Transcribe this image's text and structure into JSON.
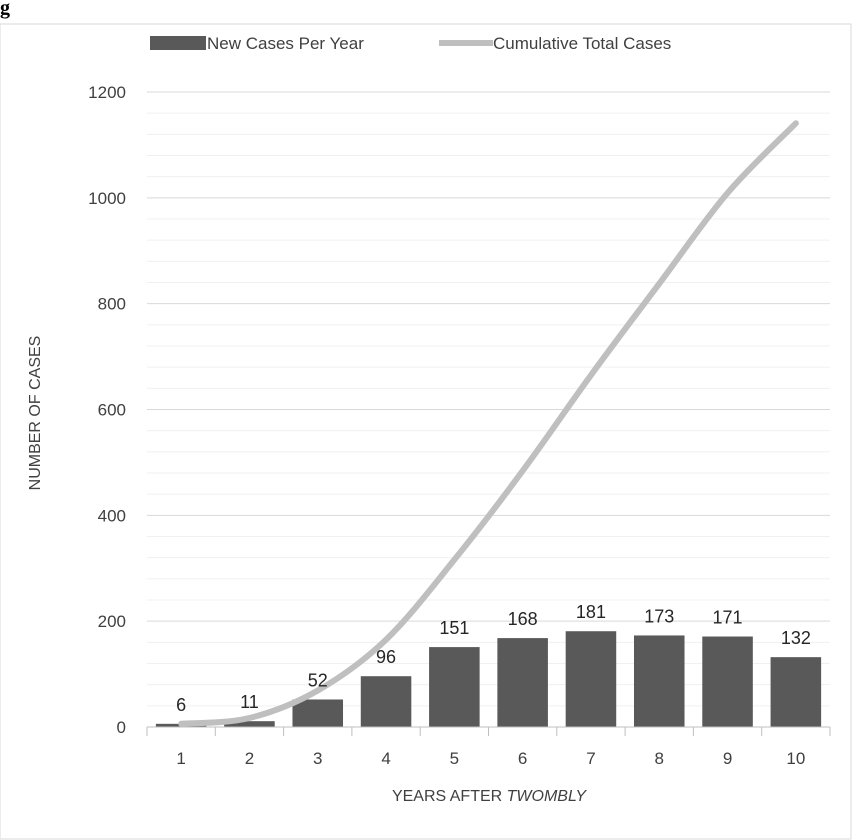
{
  "caption": {
    "prefix": "g"
  },
  "chart_data": {
    "type": "bar",
    "categories": [
      "1",
      "2",
      "3",
      "4",
      "5",
      "6",
      "7",
      "8",
      "9",
      "10"
    ],
    "series": [
      {
        "name": "New Cases Per Year",
        "type": "bar",
        "color": "#595959",
        "values": [
          6,
          11,
          52,
          96,
          151,
          168,
          181,
          173,
          171,
          132
        ]
      },
      {
        "name": "Cumulative Total Cases",
        "type": "line",
        "color": "#bfbfbf",
        "values": [
          6,
          17,
          69,
          165,
          316,
          484,
          665,
          838,
          1009,
          1141
        ]
      }
    ],
    "data_labels": [
      "6",
      "11",
      "52",
      "96",
      "151",
      "168",
      "181",
      "173",
      "171",
      "132"
    ],
    "y_ticks": [
      "0",
      "200",
      "400",
      "600",
      "800",
      "1000",
      "1200"
    ],
    "xlabel_prefix": "YEARS AFTER ",
    "xlabel_emphasis": "TWOMBLY",
    "ylabel": "NUMBER OF CASES",
    "ylim": [
      0,
      1200
    ],
    "grid": true,
    "minor_grid_step": 40,
    "legend_position": "top"
  }
}
